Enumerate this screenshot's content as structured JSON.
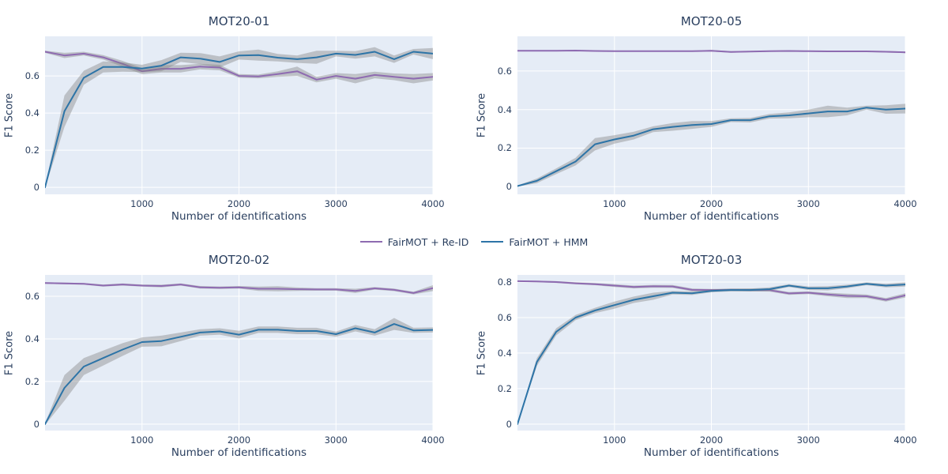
{
  "colors": {
    "reid": "#8e6bb1",
    "hmm": "#2d74a7",
    "band": "rgba(128,128,128,0.40)",
    "plot_bg": "#e5ecf6",
    "grid": "#ffffff",
    "text": "#2a3f5f"
  },
  "legend": {
    "items": [
      {
        "label": "FairMOT + Re-ID",
        "series": "reid"
      },
      {
        "label": "FairMOT + HMM",
        "series": "hmm"
      }
    ]
  },
  "chart_data": [
    {
      "type": "line",
      "title": "MOT20-01",
      "xlabel": "Number of identifications",
      "ylabel": "F1 Score",
      "xlim": [
        0,
        4000
      ],
      "ylim": [
        -0.038,
        0.813
      ],
      "xticks": [
        1000,
        2000,
        3000,
        4000
      ],
      "yticks": [
        0,
        0.2,
        0.4,
        0.6
      ],
      "grid": true,
      "x": [
        0,
        200,
        400,
        600,
        800,
        1000,
        1200,
        1400,
        1600,
        1800,
        2000,
        2200,
        2400,
        2600,
        2800,
        3000,
        3200,
        3400,
        3600,
        3800,
        4000
      ],
      "series": [
        {
          "name": "FairMOT + Re-ID",
          "color_key": "reid",
          "values": [
            0.73,
            0.71,
            0.72,
            0.7,
            0.665,
            0.625,
            0.638,
            0.638,
            0.65,
            0.645,
            0.6,
            0.597,
            0.61,
            0.625,
            0.58,
            0.6,
            0.585,
            0.605,
            0.595,
            0.585,
            0.595
          ],
          "err": [
            0.006,
            0.014,
            0.01,
            0.012,
            0.016,
            0.016,
            0.02,
            0.02,
            0.015,
            0.015,
            0.01,
            0.01,
            0.015,
            0.025,
            0.015,
            0.015,
            0.025,
            0.018,
            0.018,
            0.025,
            0.02
          ]
        },
        {
          "name": "FairMOT + HMM",
          "color_key": "hmm",
          "values": [
            0.0,
            0.41,
            0.59,
            0.648,
            0.648,
            0.64,
            0.655,
            0.7,
            0.693,
            0.675,
            0.71,
            0.712,
            0.698,
            0.69,
            0.7,
            0.72,
            0.713,
            0.73,
            0.69,
            0.73,
            0.72
          ],
          "err": [
            0.004,
            0.085,
            0.038,
            0.03,
            0.025,
            0.02,
            0.03,
            0.025,
            0.03,
            0.03,
            0.022,
            0.03,
            0.02,
            0.02,
            0.035,
            0.015,
            0.02,
            0.025,
            0.02,
            0.015,
            0.03
          ]
        }
      ]
    },
    {
      "type": "line",
      "title": "MOT20-05",
      "xlabel": "Number of identifications",
      "ylabel": "F1 Score",
      "xlim": [
        0,
        4000
      ],
      "ylim": [
        -0.04,
        0.78
      ],
      "xticks": [
        1000,
        2000,
        3000,
        4000
      ],
      "yticks": [
        0,
        0.2,
        0.4,
        0.6
      ],
      "grid": true,
      "x": [
        0,
        200,
        400,
        600,
        800,
        1000,
        1200,
        1400,
        1600,
        1800,
        2000,
        2200,
        2400,
        2600,
        2800,
        3000,
        3200,
        3400,
        3600,
        3800,
        4000
      ],
      "series": [
        {
          "name": "FairMOT + Re-ID",
          "color_key": "reid",
          "values": [
            0.705,
            0.705,
            0.705,
            0.706,
            0.704,
            0.703,
            0.703,
            0.703,
            0.703,
            0.703,
            0.705,
            0.699,
            0.701,
            0.703,
            0.704,
            0.703,
            0.702,
            0.702,
            0.702,
            0.7,
            0.697
          ],
          "err": [
            0.003,
            0.003,
            0.003,
            0.003,
            0.003,
            0.003,
            0.003,
            0.003,
            0.003,
            0.003,
            0.004,
            0.004,
            0.003,
            0.003,
            0.004,
            0.003,
            0.003,
            0.004,
            0.003,
            0.004,
            0.004
          ]
        },
        {
          "name": "FairMOT + HMM",
          "color_key": "hmm",
          "values": [
            0.003,
            0.03,
            0.08,
            0.13,
            0.22,
            0.245,
            0.265,
            0.298,
            0.31,
            0.32,
            0.325,
            0.345,
            0.345,
            0.365,
            0.37,
            0.38,
            0.39,
            0.39,
            0.41,
            0.4,
            0.405
          ],
          "err": [
            0.003,
            0.012,
            0.015,
            0.02,
            0.032,
            0.022,
            0.02,
            0.015,
            0.02,
            0.02,
            0.015,
            0.01,
            0.012,
            0.012,
            0.015,
            0.02,
            0.03,
            0.02,
            0.01,
            0.022,
            0.025
          ]
        }
      ]
    },
    {
      "type": "line",
      "title": "MOT20-02",
      "xlabel": "Number of identifications",
      "ylabel": "F1 Score",
      "xlim": [
        0,
        4000
      ],
      "ylim": [
        -0.03,
        0.7
      ],
      "xticks": [
        1000,
        2000,
        3000,
        4000
      ],
      "yticks": [
        0,
        0.2,
        0.4,
        0.6
      ],
      "grid": true,
      "x": [
        0,
        200,
        400,
        600,
        800,
        1000,
        1200,
        1400,
        1600,
        1800,
        2000,
        2200,
        2400,
        2600,
        2800,
        3000,
        3200,
        3400,
        3600,
        3800,
        4000
      ],
      "series": [
        {
          "name": "FairMOT + Re-ID",
          "color_key": "reid",
          "values": [
            0.662,
            0.66,
            0.658,
            0.65,
            0.655,
            0.65,
            0.648,
            0.655,
            0.642,
            0.64,
            0.642,
            0.635,
            0.635,
            0.633,
            0.632,
            0.632,
            0.625,
            0.637,
            0.63,
            0.615,
            0.638
          ],
          "err": [
            0.004,
            0.004,
            0.004,
            0.005,
            0.005,
            0.005,
            0.006,
            0.005,
            0.006,
            0.006,
            0.006,
            0.01,
            0.012,
            0.008,
            0.006,
            0.006,
            0.01,
            0.006,
            0.006,
            0.006,
            0.014
          ]
        },
        {
          "name": "FairMOT + HMM",
          "color_key": "hmm",
          "values": [
            0.0,
            0.17,
            0.27,
            0.31,
            0.35,
            0.385,
            0.39,
            0.41,
            0.43,
            0.435,
            0.42,
            0.443,
            0.443,
            0.437,
            0.437,
            0.422,
            0.45,
            0.43,
            0.47,
            0.44,
            0.442
          ],
          "err": [
            0.004,
            0.06,
            0.04,
            0.035,
            0.03,
            0.022,
            0.025,
            0.02,
            0.015,
            0.015,
            0.018,
            0.015,
            0.015,
            0.015,
            0.015,
            0.012,
            0.015,
            0.015,
            0.028,
            0.012,
            0.012
          ]
        }
      ]
    },
    {
      "type": "line",
      "title": "MOT20-03",
      "xlabel": "Number of identifications",
      "ylabel": "F1 Score",
      "xlim": [
        0,
        4000
      ],
      "ylim": [
        -0.036,
        0.84
      ],
      "xticks": [
        1000,
        2000,
        3000,
        4000
      ],
      "yticks": [
        0,
        0.2,
        0.4,
        0.6,
        0.8
      ],
      "grid": true,
      "x": [
        0,
        200,
        400,
        600,
        800,
        1000,
        1200,
        1400,
        1600,
        1800,
        2000,
        2200,
        2400,
        2600,
        2800,
        3000,
        3200,
        3400,
        3600,
        3800,
        4000
      ],
      "series": [
        {
          "name": "FairMOT + Re-ID",
          "color_key": "reid",
          "values": [
            0.805,
            0.803,
            0.8,
            0.793,
            0.788,
            0.78,
            0.772,
            0.776,
            0.775,
            0.756,
            0.755,
            0.756,
            0.755,
            0.754,
            0.736,
            0.74,
            0.73,
            0.722,
            0.72,
            0.7,
            0.725
          ],
          "err": [
            0.004,
            0.004,
            0.005,
            0.006,
            0.006,
            0.008,
            0.008,
            0.008,
            0.008,
            0.008,
            0.006,
            0.006,
            0.008,
            0.008,
            0.008,
            0.008,
            0.01,
            0.012,
            0.01,
            0.01,
            0.012
          ]
        },
        {
          "name": "FairMOT + HMM",
          "color_key": "hmm",
          "values": [
            0.0,
            0.35,
            0.52,
            0.6,
            0.64,
            0.67,
            0.7,
            0.72,
            0.74,
            0.737,
            0.75,
            0.755,
            0.755,
            0.76,
            0.78,
            0.765,
            0.765,
            0.775,
            0.79,
            0.78,
            0.786
          ],
          "err": [
            0.004,
            0.022,
            0.02,
            0.015,
            0.015,
            0.02,
            0.018,
            0.02,
            0.01,
            0.01,
            0.008,
            0.008,
            0.008,
            0.01,
            0.008,
            0.01,
            0.012,
            0.01,
            0.008,
            0.01,
            0.012
          ]
        }
      ]
    }
  ]
}
